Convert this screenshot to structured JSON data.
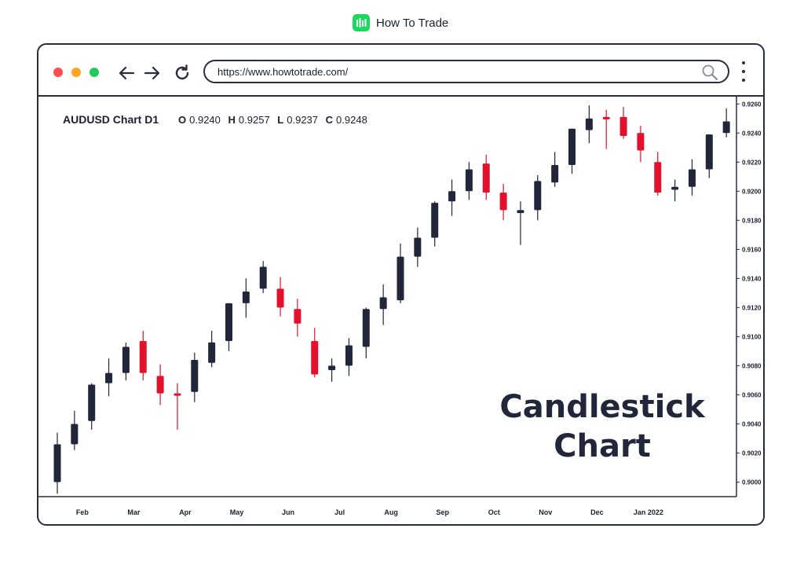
{
  "brand": {
    "name": "How To Trade"
  },
  "browser": {
    "url": "https://www.howtotrade.com/",
    "icons": [
      "back-arrow-icon",
      "forward-arrow-icon",
      "reload-icon",
      "search-icon",
      "more-vertical-icon"
    ]
  },
  "colors": {
    "bull": "#22263a",
    "bear": "#e3112b",
    "frame": "#2a2d3e",
    "brand_green": "#1ed760"
  },
  "chart_data": {
    "type": "candlestick",
    "title": "AUDUSD Chart D1",
    "overlay_title": [
      "Candlestick",
      "Chart"
    ],
    "ohlc": [
      {
        "label": "O",
        "value": "0.9240"
      },
      {
        "label": "H",
        "value": "0.9257"
      },
      {
        "label": "L",
        "value": "0.9237"
      },
      {
        "label": "C",
        "value": "0.9248"
      }
    ],
    "ylim": [
      0.899,
      0.9265
    ],
    "y_ticks": [
      "0.9260",
      "0.9240",
      "0.9220",
      "0.9200",
      "0.9180",
      "0.9160",
      "0.9140",
      "0.9120",
      "0.9100",
      "0.9080",
      "0.9060",
      "0.9040",
      "0.9020",
      "0.9000"
    ],
    "x_ticks": [
      {
        "label": "Feb",
        "index": 1
      },
      {
        "label": "Mar",
        "index": 4
      },
      {
        "label": "Apr",
        "index": 7
      },
      {
        "label": "May",
        "index": 10
      },
      {
        "label": "Jun",
        "index": 13
      },
      {
        "label": "Jul",
        "index": 16
      },
      {
        "label": "Aug",
        "index": 19
      },
      {
        "label": "Sep",
        "index": 22
      },
      {
        "label": "Oct",
        "index": 25
      },
      {
        "label": "Nov",
        "index": 28
      },
      {
        "label": "Dec",
        "index": 31
      },
      {
        "label": "Jan 2022",
        "index": 34
      }
    ],
    "candles": [
      {
        "o": 0.9,
        "h": 0.9034,
        "l": 0.8992,
        "c": 0.9026
      },
      {
        "o": 0.9026,
        "h": 0.9049,
        "l": 0.9022,
        "c": 0.904
      },
      {
        "o": 0.9042,
        "h": 0.9068,
        "l": 0.9036,
        "c": 0.9067
      },
      {
        "o": 0.9068,
        "h": 0.9085,
        "l": 0.9059,
        "c": 0.9075
      },
      {
        "o": 0.9075,
        "h": 0.9096,
        "l": 0.907,
        "c": 0.9093
      },
      {
        "o": 0.9097,
        "h": 0.9104,
        "l": 0.907,
        "c": 0.9075
      },
      {
        "o": 0.9073,
        "h": 0.9081,
        "l": 0.9053,
        "c": 0.9061
      },
      {
        "o": 0.9061,
        "h": 0.9068,
        "l": 0.9036,
        "c": 0.906
      },
      {
        "o": 0.9062,
        "h": 0.9089,
        "l": 0.9055,
        "c": 0.9084
      },
      {
        "o": 0.9082,
        "h": 0.9104,
        "l": 0.9079,
        "c": 0.9096
      },
      {
        "o": 0.9097,
        "h": 0.9123,
        "l": 0.909,
        "c": 0.9123
      },
      {
        "o": 0.9123,
        "h": 0.914,
        "l": 0.9113,
        "c": 0.9131
      },
      {
        "o": 0.9133,
        "h": 0.9152,
        "l": 0.913,
        "c": 0.9148
      },
      {
        "o": 0.9133,
        "h": 0.9141,
        "l": 0.9114,
        "c": 0.912
      },
      {
        "o": 0.9119,
        "h": 0.9126,
        "l": 0.91,
        "c": 0.9109
      },
      {
        "o": 0.9097,
        "h": 0.9106,
        "l": 0.9072,
        "c": 0.9074
      },
      {
        "o": 0.9077,
        "h": 0.9085,
        "l": 0.9069,
        "c": 0.908
      },
      {
        "o": 0.908,
        "h": 0.9099,
        "l": 0.9073,
        "c": 0.9094
      },
      {
        "o": 0.9093,
        "h": 0.912,
        "l": 0.9085,
        "c": 0.9119
      },
      {
        "o": 0.9119,
        "h": 0.9136,
        "l": 0.9108,
        "c": 0.9127
      },
      {
        "o": 0.9125,
        "h": 0.9164,
        "l": 0.9123,
        "c": 0.9155
      },
      {
        "o": 0.9155,
        "h": 0.9175,
        "l": 0.9148,
        "c": 0.9168
      },
      {
        "o": 0.9168,
        "h": 0.9193,
        "l": 0.9162,
        "c": 0.9192
      },
      {
        "o": 0.9193,
        "h": 0.9208,
        "l": 0.9183,
        "c": 0.92
      },
      {
        "o": 0.92,
        "h": 0.922,
        "l": 0.9194,
        "c": 0.9215
      },
      {
        "o": 0.9219,
        "h": 0.9225,
        "l": 0.9194,
        "c": 0.9199
      },
      {
        "o": 0.9199,
        "h": 0.9205,
        "l": 0.918,
        "c": 0.9187
      },
      {
        "o": 0.9185,
        "h": 0.9193,
        "l": 0.9163,
        "c": 0.9187
      },
      {
        "o": 0.9187,
        "h": 0.9211,
        "l": 0.918,
        "c": 0.9207
      },
      {
        "o": 0.9206,
        "h": 0.9227,
        "l": 0.9203,
        "c": 0.9218
      },
      {
        "o": 0.9218,
        "h": 0.9243,
        "l": 0.9212,
        "c": 0.9243
      },
      {
        "o": 0.9242,
        "h": 0.9259,
        "l": 0.9233,
        "c": 0.925
      },
      {
        "o": 0.9251,
        "h": 0.9256,
        "l": 0.9229,
        "c": 0.925
      },
      {
        "o": 0.9251,
        "h": 0.9258,
        "l": 0.9236,
        "c": 0.9238
      },
      {
        "o": 0.924,
        "h": 0.9245,
        "l": 0.922,
        "c": 0.9228
      },
      {
        "o": 0.922,
        "h": 0.9227,
        "l": 0.9197,
        "c": 0.9199
      },
      {
        "o": 0.9201,
        "h": 0.9208,
        "l": 0.9193,
        "c": 0.9203
      },
      {
        "o": 0.9203,
        "h": 0.9222,
        "l": 0.9197,
        "c": 0.9215
      },
      {
        "o": 0.9215,
        "h": 0.9239,
        "l": 0.9209,
        "c": 0.9239
      },
      {
        "o": 0.924,
        "h": 0.9257,
        "l": 0.9237,
        "c": 0.9248
      }
    ]
  }
}
